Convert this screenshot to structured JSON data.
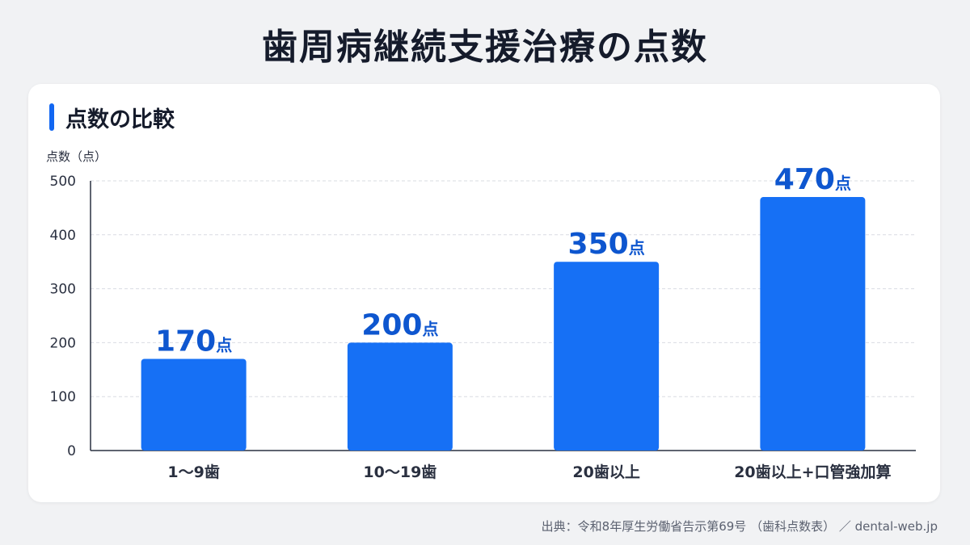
{
  "title": "歯周病継続支援治療の点数",
  "section_title": "点数の比較",
  "source": "出典：令和8年厚生労働省告示第69号 （歯科点数表） ／ dental-web.jp",
  "colors": {
    "accent": "#1267f2",
    "bar": "#1670f5",
    "label": "#0e56cf",
    "grid": "#d9dce2",
    "axis": "#2a3040",
    "tick_text": "#2a3040"
  },
  "chart_data": {
    "type": "bar",
    "ylabel": "点数（点）",
    "ylim": [
      0,
      500
    ],
    "yticks": [
      0,
      100,
      200,
      300,
      400,
      500
    ],
    "categories": [
      "1〜9歯",
      "10〜19歯",
      "20歯以上",
      "20歯以上+口管強加算"
    ],
    "values": [
      170,
      200,
      350,
      470
    ],
    "data_labels": [
      "170",
      "200",
      "350",
      "470"
    ],
    "value_unit": "点",
    "grid": true
  }
}
